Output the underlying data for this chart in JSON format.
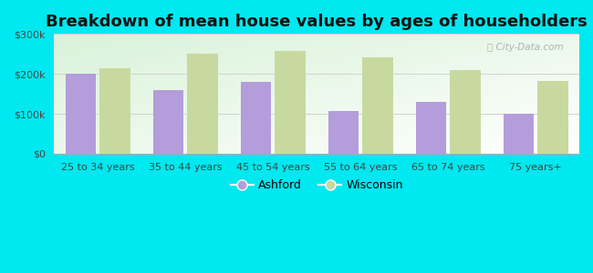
{
  "title": "Breakdown of mean house values by ages of householders",
  "categories": [
    "25 to 34 years",
    "35 to 44 years",
    "45 to 54 years",
    "55 to 64 years",
    "65 to 74 years",
    "75 years+"
  ],
  "ashford_values": [
    200000,
    160000,
    180000,
    107000,
    130000,
    100000
  ],
  "wisconsin_values": [
    215000,
    250000,
    258000,
    242000,
    210000,
    183000
  ],
  "ashford_color": "#b39ddb",
  "wisconsin_color": "#c8d9a0",
  "background_outer": "#00e8f0",
  "background_inner": "#e8f5e0",
  "ylim": [
    0,
    300000
  ],
  "yticks": [
    0,
    100000,
    200000,
    300000
  ],
  "ytick_labels": [
    "$0",
    "$100k",
    "$200k",
    "$300k"
  ],
  "legend_labels": [
    "Ashford",
    "Wisconsin"
  ],
  "title_fontsize": 13,
  "tick_fontsize": 8,
  "legend_fontsize": 9,
  "bar_width": 0.35
}
